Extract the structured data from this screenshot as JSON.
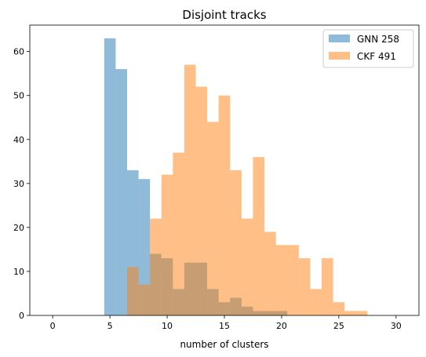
{
  "chart_data": {
    "type": "histogram",
    "title": "Disjoint tracks",
    "xlabel": "number of clusters",
    "ylabel": "",
    "xlim": [
      -2,
      32
    ],
    "ylim": [
      0,
      66
    ],
    "x_ticks": [
      0,
      5,
      10,
      15,
      20,
      25,
      30
    ],
    "y_ticks": [
      0,
      10,
      20,
      30,
      40,
      50,
      60
    ],
    "legend_position": "top-right",
    "series": [
      {
        "name": "GNN 258",
        "color": "#1f77b4",
        "alpha": 0.5,
        "bins": [
          {
            "x0": 4.5,
            "x1": 5.5,
            "count": 63
          },
          {
            "x0": 5.5,
            "x1": 6.5,
            "count": 56
          },
          {
            "x0": 6.5,
            "x1": 7.5,
            "count": 33
          },
          {
            "x0": 7.5,
            "x1": 8.5,
            "count": 31
          },
          {
            "x0": 8.5,
            "x1": 9.5,
            "count": 14
          },
          {
            "x0": 9.5,
            "x1": 10.5,
            "count": 13
          },
          {
            "x0": 10.5,
            "x1": 11.5,
            "count": 6
          },
          {
            "x0": 11.5,
            "x1": 12.5,
            "count": 12
          },
          {
            "x0": 12.5,
            "x1": 13.5,
            "count": 12
          },
          {
            "x0": 13.5,
            "x1": 14.5,
            "count": 6
          },
          {
            "x0": 14.5,
            "x1": 15.5,
            "count": 3
          },
          {
            "x0": 15.5,
            "x1": 16.5,
            "count": 4
          },
          {
            "x0": 16.5,
            "x1": 17.5,
            "count": 2
          },
          {
            "x0": 17.5,
            "x1": 18.5,
            "count": 1
          },
          {
            "x0": 18.5,
            "x1": 19.5,
            "count": 1
          },
          {
            "x0": 19.5,
            "x1": 20.5,
            "count": 1
          }
        ]
      },
      {
        "name": "CKF 491",
        "color": "#ff7f0e",
        "alpha": 0.5,
        "bins": [
          {
            "x0": 6.5,
            "x1": 7.5,
            "count": 11
          },
          {
            "x0": 7.5,
            "x1": 8.5,
            "count": 7
          },
          {
            "x0": 8.5,
            "x1": 9.5,
            "count": 22
          },
          {
            "x0": 9.5,
            "x1": 10.5,
            "count": 32
          },
          {
            "x0": 10.5,
            "x1": 11.5,
            "count": 37
          },
          {
            "x0": 11.5,
            "x1": 12.5,
            "count": 57
          },
          {
            "x0": 12.5,
            "x1": 13.5,
            "count": 52
          },
          {
            "x0": 13.5,
            "x1": 14.5,
            "count": 44
          },
          {
            "x0": 14.5,
            "x1": 15.5,
            "count": 50
          },
          {
            "x0": 15.5,
            "x1": 16.5,
            "count": 33
          },
          {
            "x0": 16.5,
            "x1": 17.5,
            "count": 22
          },
          {
            "x0": 17.5,
            "x1": 18.5,
            "count": 36
          },
          {
            "x0": 18.5,
            "x1": 19.5,
            "count": 19
          },
          {
            "x0": 19.5,
            "x1": 20.5,
            "count": 16
          },
          {
            "x0": 20.5,
            "x1": 21.5,
            "count": 16
          },
          {
            "x0": 21.5,
            "x1": 22.5,
            "count": 13
          },
          {
            "x0": 22.5,
            "x1": 23.5,
            "count": 6
          },
          {
            "x0": 23.5,
            "x1": 24.5,
            "count": 13
          },
          {
            "x0": 24.5,
            "x1": 25.5,
            "count": 3
          },
          {
            "x0": 25.5,
            "x1": 26.5,
            "count": 1
          },
          {
            "x0": 26.5,
            "x1": 27.5,
            "count": 1
          }
        ]
      }
    ]
  }
}
